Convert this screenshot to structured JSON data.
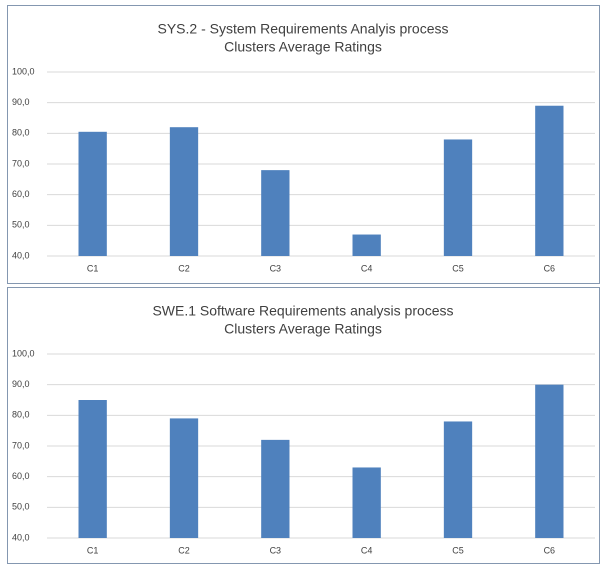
{
  "chart_data": [
    {
      "type": "bar",
      "title": "SYS.2 - System Requirements Analyis process",
      "subtitle": "Clusters Average Ratings",
      "categories": [
        "C1",
        "C2",
        "C3",
        "C4",
        "C5",
        "C6"
      ],
      "values": [
        80.5,
        82,
        68,
        47,
        78,
        89
      ],
      "color": "#4f81bd",
      "ylim": [
        40,
        100
      ],
      "yticks": [
        {
          "value": 40,
          "label": "40,0"
        },
        {
          "value": 50,
          "label": "50,0"
        },
        {
          "value": 60,
          "label": "60,0"
        },
        {
          "value": 70,
          "label": "70,0"
        },
        {
          "value": 80,
          "label": "80,0"
        },
        {
          "value": 90,
          "label": "90,0"
        },
        {
          "value": 100,
          "label": "100,0"
        }
      ],
      "grid": true
    },
    {
      "type": "bar",
      "title": "SWE.1 Software Requirements analysis process",
      "subtitle": "Clusters Average Ratings",
      "categories": [
        "C1",
        "C2",
        "C3",
        "C4",
        "C5",
        "C6"
      ],
      "values": [
        85,
        79,
        72,
        63,
        78,
        90
      ],
      "color": "#4f81bd",
      "ylim": [
        40,
        100
      ],
      "yticks": [
        {
          "value": 40,
          "label": "40,0"
        },
        {
          "value": 50,
          "label": "50,0"
        },
        {
          "value": 60,
          "label": "60,0"
        },
        {
          "value": 70,
          "label": "70,0"
        },
        {
          "value": 80,
          "label": "80,0"
        },
        {
          "value": 90,
          "label": "90,0"
        },
        {
          "value": 100,
          "label": "100,0"
        }
      ],
      "grid": true
    }
  ]
}
